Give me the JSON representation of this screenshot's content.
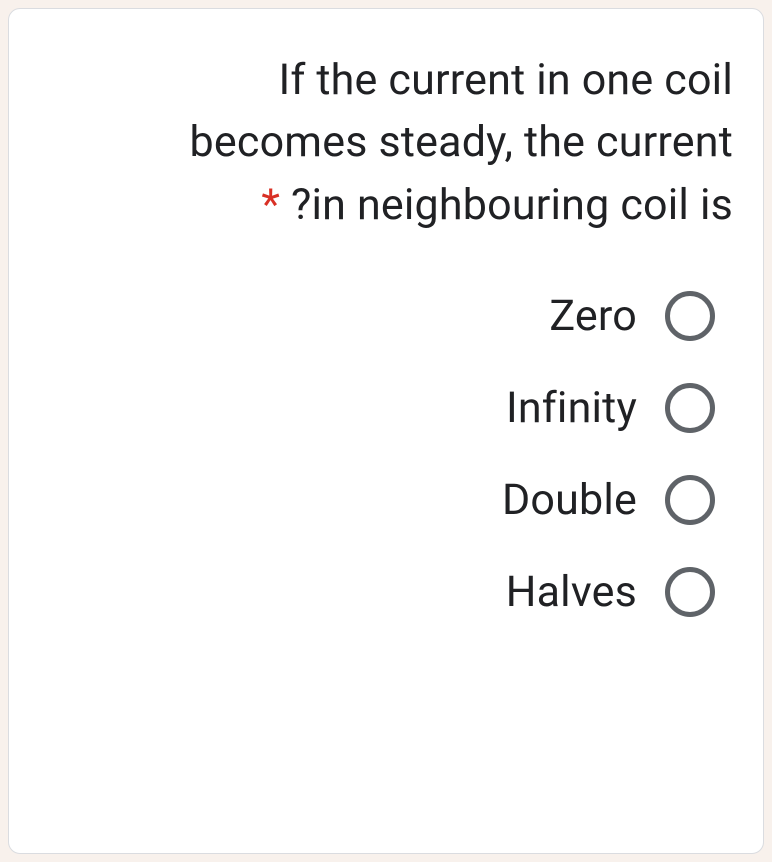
{
  "question": {
    "text_line1": "If the current in one coil",
    "text_line2": "becomes steady, the current",
    "text_line3_after_marker": "?in neighbouring coil is",
    "required_marker": "*"
  },
  "options": [
    {
      "label": "Zero",
      "selected": false
    },
    {
      "label": "Infinity",
      "selected": false
    },
    {
      "label": "Double",
      "selected": false
    },
    {
      "label": "Halves",
      "selected": false
    }
  ],
  "colors": {
    "background": "#f8f1ec",
    "card_background": "#ffffff",
    "card_border": "#dadce0",
    "text": "#202124",
    "required": "#d93025",
    "radio_border": "#5f6368"
  }
}
